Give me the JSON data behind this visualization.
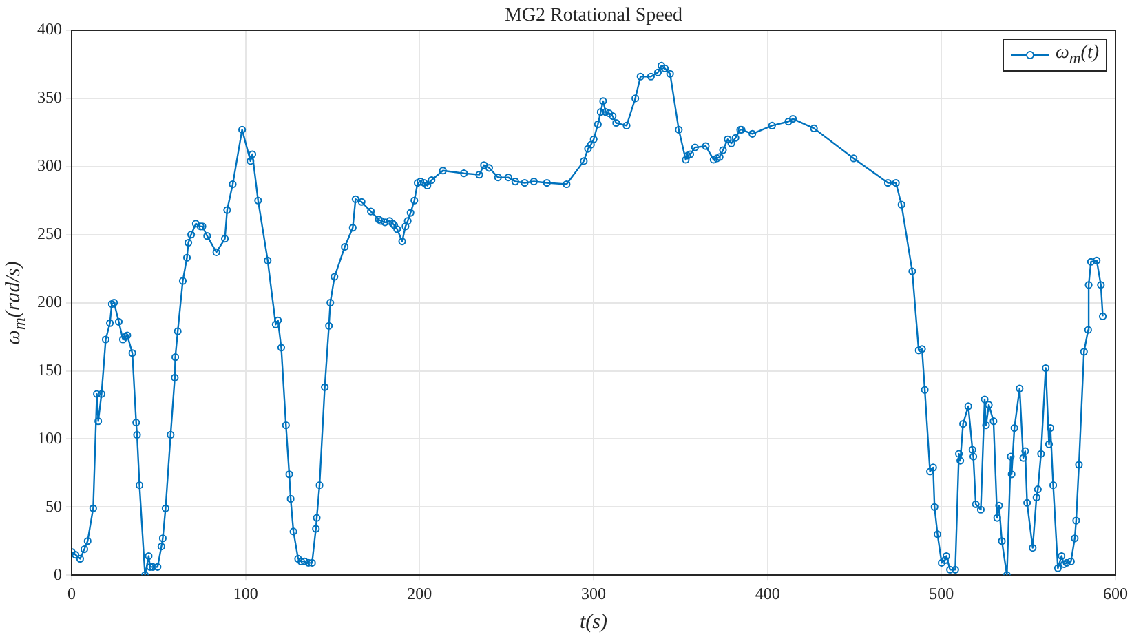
{
  "chart_data": {
    "type": "line",
    "title": "MG2 Rotational Speed",
    "xlabel": "t(s)",
    "ylabel": "ω$_{m}$(rad/s)",
    "xlim": [
      0,
      600
    ],
    "xticks": [
      0,
      100,
      200,
      300,
      400,
      500,
      600
    ],
    "ylim": [
      0,
      400
    ],
    "yticks": [
      0,
      50,
      100,
      150,
      200,
      250,
      300,
      350,
      400
    ],
    "grid": true,
    "legend": "top right",
    "marker": "circle",
    "line_style": "solid",
    "series": [
      {
        "name": "ω$_{m}$(t)",
        "color": "#0072bd",
        "x": [
          0,
          2.2,
          4.9,
          7.3,
          9.2,
          12.4,
          14.5,
          15.3,
          17.2,
          19.6,
          22,
          23.1,
          24.4,
          27.1,
          29.5,
          30.9,
          32,
          34.9,
          37.1,
          37.6,
          39,
          42.2,
          44.3,
          45.1,
          46.7,
          49.4,
          51.6,
          52.4,
          54,
          56.9,
          59.3,
          59.6,
          61,
          63.9,
          66.3,
          67.1,
          68.7,
          71.4,
          74.1,
          75.2,
          77.9,
          83.2,
          88.1,
          89.4,
          92.6,
          98,
          102.8,
          103.9,
          107.2,
          112.7,
          117.3,
          118.6,
          120.5,
          123.2,
          125.1,
          125.9,
          127.5,
          130.2,
          132,
          133.9,
          136.1,
          138.2,
          140.4,
          140.9,
          142.5,
          145.5,
          147.9,
          148.7,
          151.1,
          157,
          161.6,
          163.2,
          166.7,
          172,
          176.6,
          177.9,
          180.1,
          182.8,
          184.6,
          185.4,
          187.1,
          190,
          191.9,
          193.2,
          194.8,
          197,
          198.9,
          200.5,
          202.6,
          204.5,
          206.9,
          213.4,
          225.5,
          234.3,
          237,
          240,
          245.1,
          251,
          255,
          260.4,
          265.7,
          273.2,
          284.5,
          294.4,
          296.8,
          298.5,
          300.1,
          302.5,
          304.1,
          305.5,
          307,
          309,
          311,
          313,
          319,
          324,
          327,
          333,
          337,
          339,
          341,
          344,
          349,
          353,
          354,
          355.6,
          358.3,
          364.5,
          369,
          370.9,
          372.5,
          374.4,
          377.1,
          379.2,
          381.6,
          384.3,
          385.1,
          391.3,
          402.6,
          412,
          414.6,
          426.7,
          449.5,
          469.2,
          473.8,
          477,
          483.2,
          486.9,
          488.8,
          490.4,
          493.4,
          495.2,
          496,
          497.7,
          500.1,
          502,
          502.8,
          504.9,
          507.9,
          510,
          510.8,
          512.4,
          515.4,
          517.8,
          518.3,
          519.7,
          522.6,
          524.8,
          525.6,
          527.2,
          529.9,
          532,
          533.1,
          534.7,
          537.6,
          539.8,
          540.3,
          541.9,
          544.9,
          547,
          548.1,
          549.2,
          552.4,
          554.6,
          555.4,
          557.2,
          559.9,
          561.8,
          562.6,
          564.2,
          566.9,
          569,
          570.4,
          572,
          574.4,
          576.6,
          577.4,
          579,
          581.9,
          584.3,
          584.6,
          585.9,
          589.2,
          591.6,
          592.7
        ],
        "values": [
          17,
          15,
          12,
          19,
          25,
          49,
          133,
          113,
          133,
          173,
          185,
          199,
          200,
          186,
          173,
          175,
          176,
          163,
          112,
          103,
          66,
          0,
          14,
          6,
          6,
          6,
          21,
          27,
          49,
          103,
          145,
          160,
          179,
          216,
          233,
          244,
          250,
          258,
          256,
          256,
          249,
          237,
          247,
          268,
          287,
          327,
          304,
          309,
          275,
          231,
          184,
          187,
          167,
          110,
          74,
          56,
          32,
          12,
          10,
          10,
          9,
          9,
          34,
          42,
          66,
          138,
          183,
          200,
          219,
          241,
          255,
          276,
          274,
          267,
          261,
          260,
          259,
          260,
          258,
          257,
          254,
          245,
          256,
          260,
          266,
          275,
          288,
          289,
          288,
          286,
          290,
          297,
          295,
          294,
          301,
          299,
          292,
          292,
          289,
          288,
          289,
          288,
          287,
          304,
          313,
          316,
          320,
          331,
          340,
          348,
          340,
          339,
          337,
          332,
          330,
          350,
          366,
          366,
          369,
          374,
          372,
          368,
          327,
          305,
          308,
          309,
          314,
          315,
          305,
          306,
          307,
          312,
          320,
          317,
          321,
          327,
          327,
          324,
          330,
          333,
          335,
          328,
          306,
          288,
          288,
          272,
          223,
          165,
          166,
          136,
          76,
          79,
          50,
          30,
          9,
          11,
          14,
          4,
          4,
          89,
          84,
          111,
          124,
          92,
          87,
          52,
          48,
          129,
          110,
          125,
          113,
          42,
          51,
          25,
          0,
          87,
          74,
          108,
          137,
          86,
          91,
          53,
          20,
          57,
          63,
          89,
          152,
          96,
          108,
          66,
          5,
          14,
          8,
          9,
          10,
          27,
          40,
          81,
          164,
          180,
          213,
          230,
          231,
          213,
          190
        ]
      }
    ]
  }
}
